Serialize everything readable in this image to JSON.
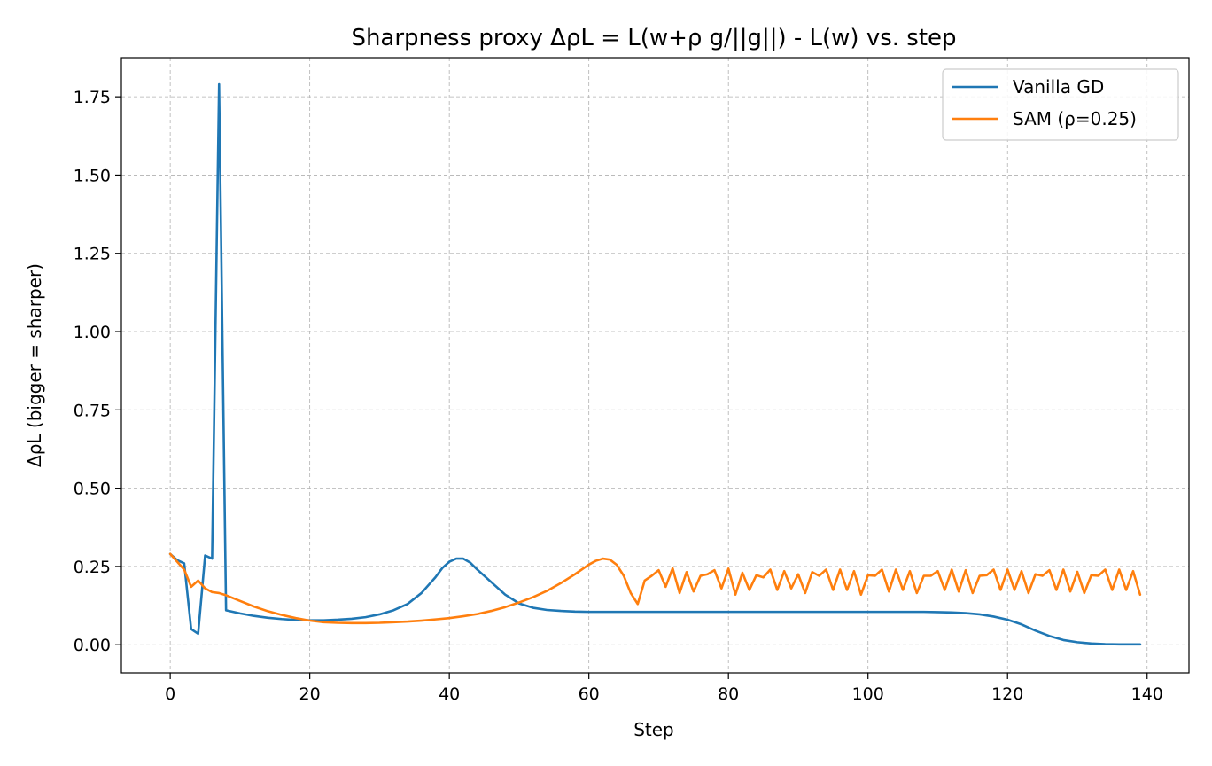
{
  "chart_data": {
    "type": "line",
    "title": "Sharpness proxy ΔρL = L(w+ρ g/||g||) - L(w) vs. step",
    "xlabel": "Step",
    "ylabel": "ΔρL (bigger = sharper)",
    "xlim": [
      -7,
      146
    ],
    "ylim": [
      -0.09,
      1.875
    ],
    "xticks": [
      0,
      20,
      40,
      60,
      80,
      100,
      120,
      140
    ],
    "yticks": [
      0.0,
      0.25,
      0.5,
      0.75,
      1.0,
      1.25,
      1.5,
      1.75
    ],
    "xtick_labels": [
      "0",
      "20",
      "40",
      "60",
      "80",
      "100",
      "120",
      "140"
    ],
    "ytick_labels": [
      "0.00",
      "0.25",
      "0.50",
      "0.75",
      "1.00",
      "1.25",
      "1.50",
      "1.75"
    ],
    "grid": true,
    "legend_position": "top-right",
    "series": [
      {
        "name": "Vanilla GD",
        "color": "#1f77b4",
        "x": [
          0,
          1,
          2,
          3,
          4,
          5,
          6,
          7,
          8,
          10,
          12,
          14,
          16,
          18,
          20,
          22,
          24,
          26,
          28,
          30,
          32,
          34,
          36,
          38,
          39,
          40,
          41,
          42,
          43,
          44,
          46,
          48,
          50,
          52,
          54,
          56,
          58,
          60,
          62,
          66,
          70,
          80,
          90,
          100,
          106,
          108,
          110,
          112,
          114,
          116,
          118,
          120,
          122,
          124,
          126,
          128,
          130,
          132,
          134,
          136,
          139
        ],
        "y": [
          0.29,
          0.27,
          0.26,
          0.05,
          0.035,
          0.285,
          0.275,
          1.79,
          0.11,
          0.1,
          0.092,
          0.086,
          0.082,
          0.079,
          0.078,
          0.078,
          0.08,
          0.083,
          0.088,
          0.097,
          0.11,
          0.13,
          0.165,
          0.215,
          0.245,
          0.265,
          0.275,
          0.275,
          0.262,
          0.24,
          0.2,
          0.16,
          0.132,
          0.118,
          0.111,
          0.108,
          0.106,
          0.105,
          0.105,
          0.105,
          0.105,
          0.105,
          0.105,
          0.105,
          0.105,
          0.105,
          0.104,
          0.103,
          0.101,
          0.097,
          0.09,
          0.08,
          0.065,
          0.045,
          0.028,
          0.015,
          0.008,
          0.004,
          0.002,
          0.001,
          0.001
        ]
      },
      {
        "name": "SAM (ρ=0.25)",
        "color": "#ff7f0e",
        "x": [
          0,
          1,
          2,
          3,
          4,
          5,
          6,
          7,
          8,
          10,
          12,
          14,
          16,
          18,
          20,
          22,
          24,
          26,
          28,
          30,
          32,
          34,
          36,
          38,
          40,
          42,
          44,
          46,
          48,
          50,
          52,
          54,
          56,
          58,
          60,
          61,
          62,
          63,
          64,
          65,
          66,
          67,
          68,
          69,
          70,
          71,
          72,
          73,
          74,
          75,
          76,
          77,
          78,
          79,
          80,
          81,
          82,
          83,
          84,
          85,
          86,
          87,
          88,
          89,
          90,
          91,
          92,
          93,
          94,
          95,
          96,
          97,
          98,
          99,
          100,
          101,
          102,
          103,
          104,
          105,
          106,
          107,
          108,
          109,
          110,
          111,
          112,
          113,
          114,
          115,
          116,
          117,
          118,
          119,
          120,
          121,
          122,
          123,
          124,
          125,
          126,
          127,
          128,
          129,
          130,
          131,
          132,
          133,
          134,
          135,
          136,
          137,
          138,
          139
        ],
        "y": [
          0.29,
          0.265,
          0.24,
          0.185,
          0.205,
          0.18,
          0.168,
          0.165,
          0.158,
          0.14,
          0.122,
          0.107,
          0.095,
          0.085,
          0.077,
          0.072,
          0.07,
          0.069,
          0.069,
          0.07,
          0.072,
          0.074,
          0.077,
          0.081,
          0.085,
          0.091,
          0.098,
          0.108,
          0.12,
          0.135,
          0.152,
          0.172,
          0.197,
          0.225,
          0.256,
          0.268,
          0.275,
          0.272,
          0.255,
          0.22,
          0.165,
          0.13,
          0.205,
          0.22,
          0.238,
          0.185,
          0.244,
          0.165,
          0.232,
          0.17,
          0.22,
          0.225,
          0.238,
          0.18,
          0.243,
          0.16,
          0.23,
          0.175,
          0.222,
          0.215,
          0.24,
          0.175,
          0.235,
          0.18,
          0.225,
          0.165,
          0.232,
          0.22,
          0.24,
          0.175,
          0.24,
          0.175,
          0.235,
          0.16,
          0.222,
          0.22,
          0.24,
          0.17,
          0.24,
          0.175,
          0.235,
          0.165,
          0.22,
          0.22,
          0.235,
          0.175,
          0.24,
          0.17,
          0.238,
          0.165,
          0.22,
          0.222,
          0.24,
          0.175,
          0.24,
          0.175,
          0.235,
          0.165,
          0.225,
          0.22,
          0.238,
          0.175,
          0.24,
          0.17,
          0.233,
          0.165,
          0.222,
          0.22,
          0.24,
          0.175,
          0.24,
          0.175,
          0.235,
          0.16
        ]
      }
    ]
  }
}
